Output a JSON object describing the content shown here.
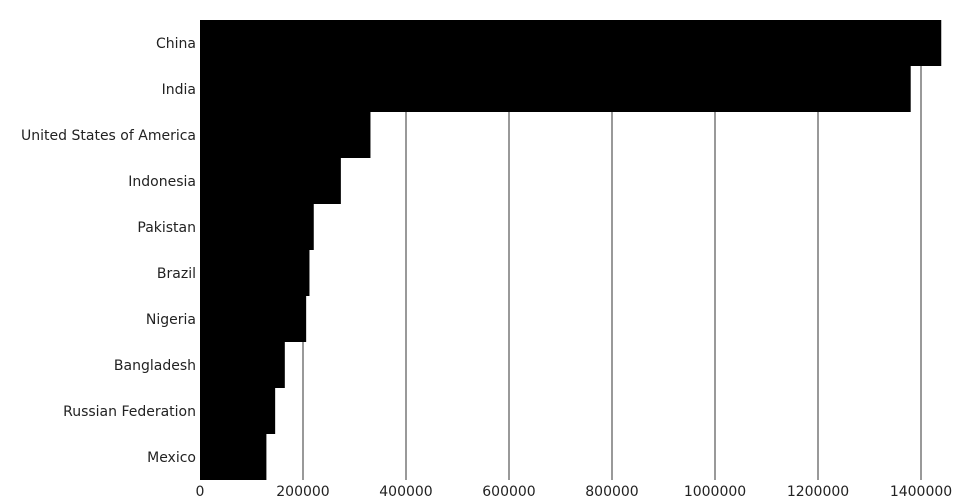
{
  "chart_data": {
    "type": "bar",
    "orientation": "horizontal",
    "categories": [
      "China",
      "India",
      "United States of America",
      "Indonesia",
      "Pakistan",
      "Brazil",
      "Nigeria",
      "Bangladesh",
      "Russian Federation",
      "Mexico"
    ],
    "values": [
      1439324,
      1380004,
      331002,
      273523,
      220892,
      212559,
      206140,
      164689,
      145934,
      128933
    ],
    "xlim": [
      0,
      1400000
    ],
    "xticks": [
      0,
      200000,
      400000,
      600000,
      800000,
      1000000,
      1200000,
      1400000
    ],
    "xtick_labels": [
      "0",
      "200000",
      "400000",
      "600000",
      "800000",
      "1000000",
      "1200000",
      "1400000"
    ],
    "grid": "vertical",
    "bar_color": "#000000",
    "grid_color": "#333333"
  }
}
